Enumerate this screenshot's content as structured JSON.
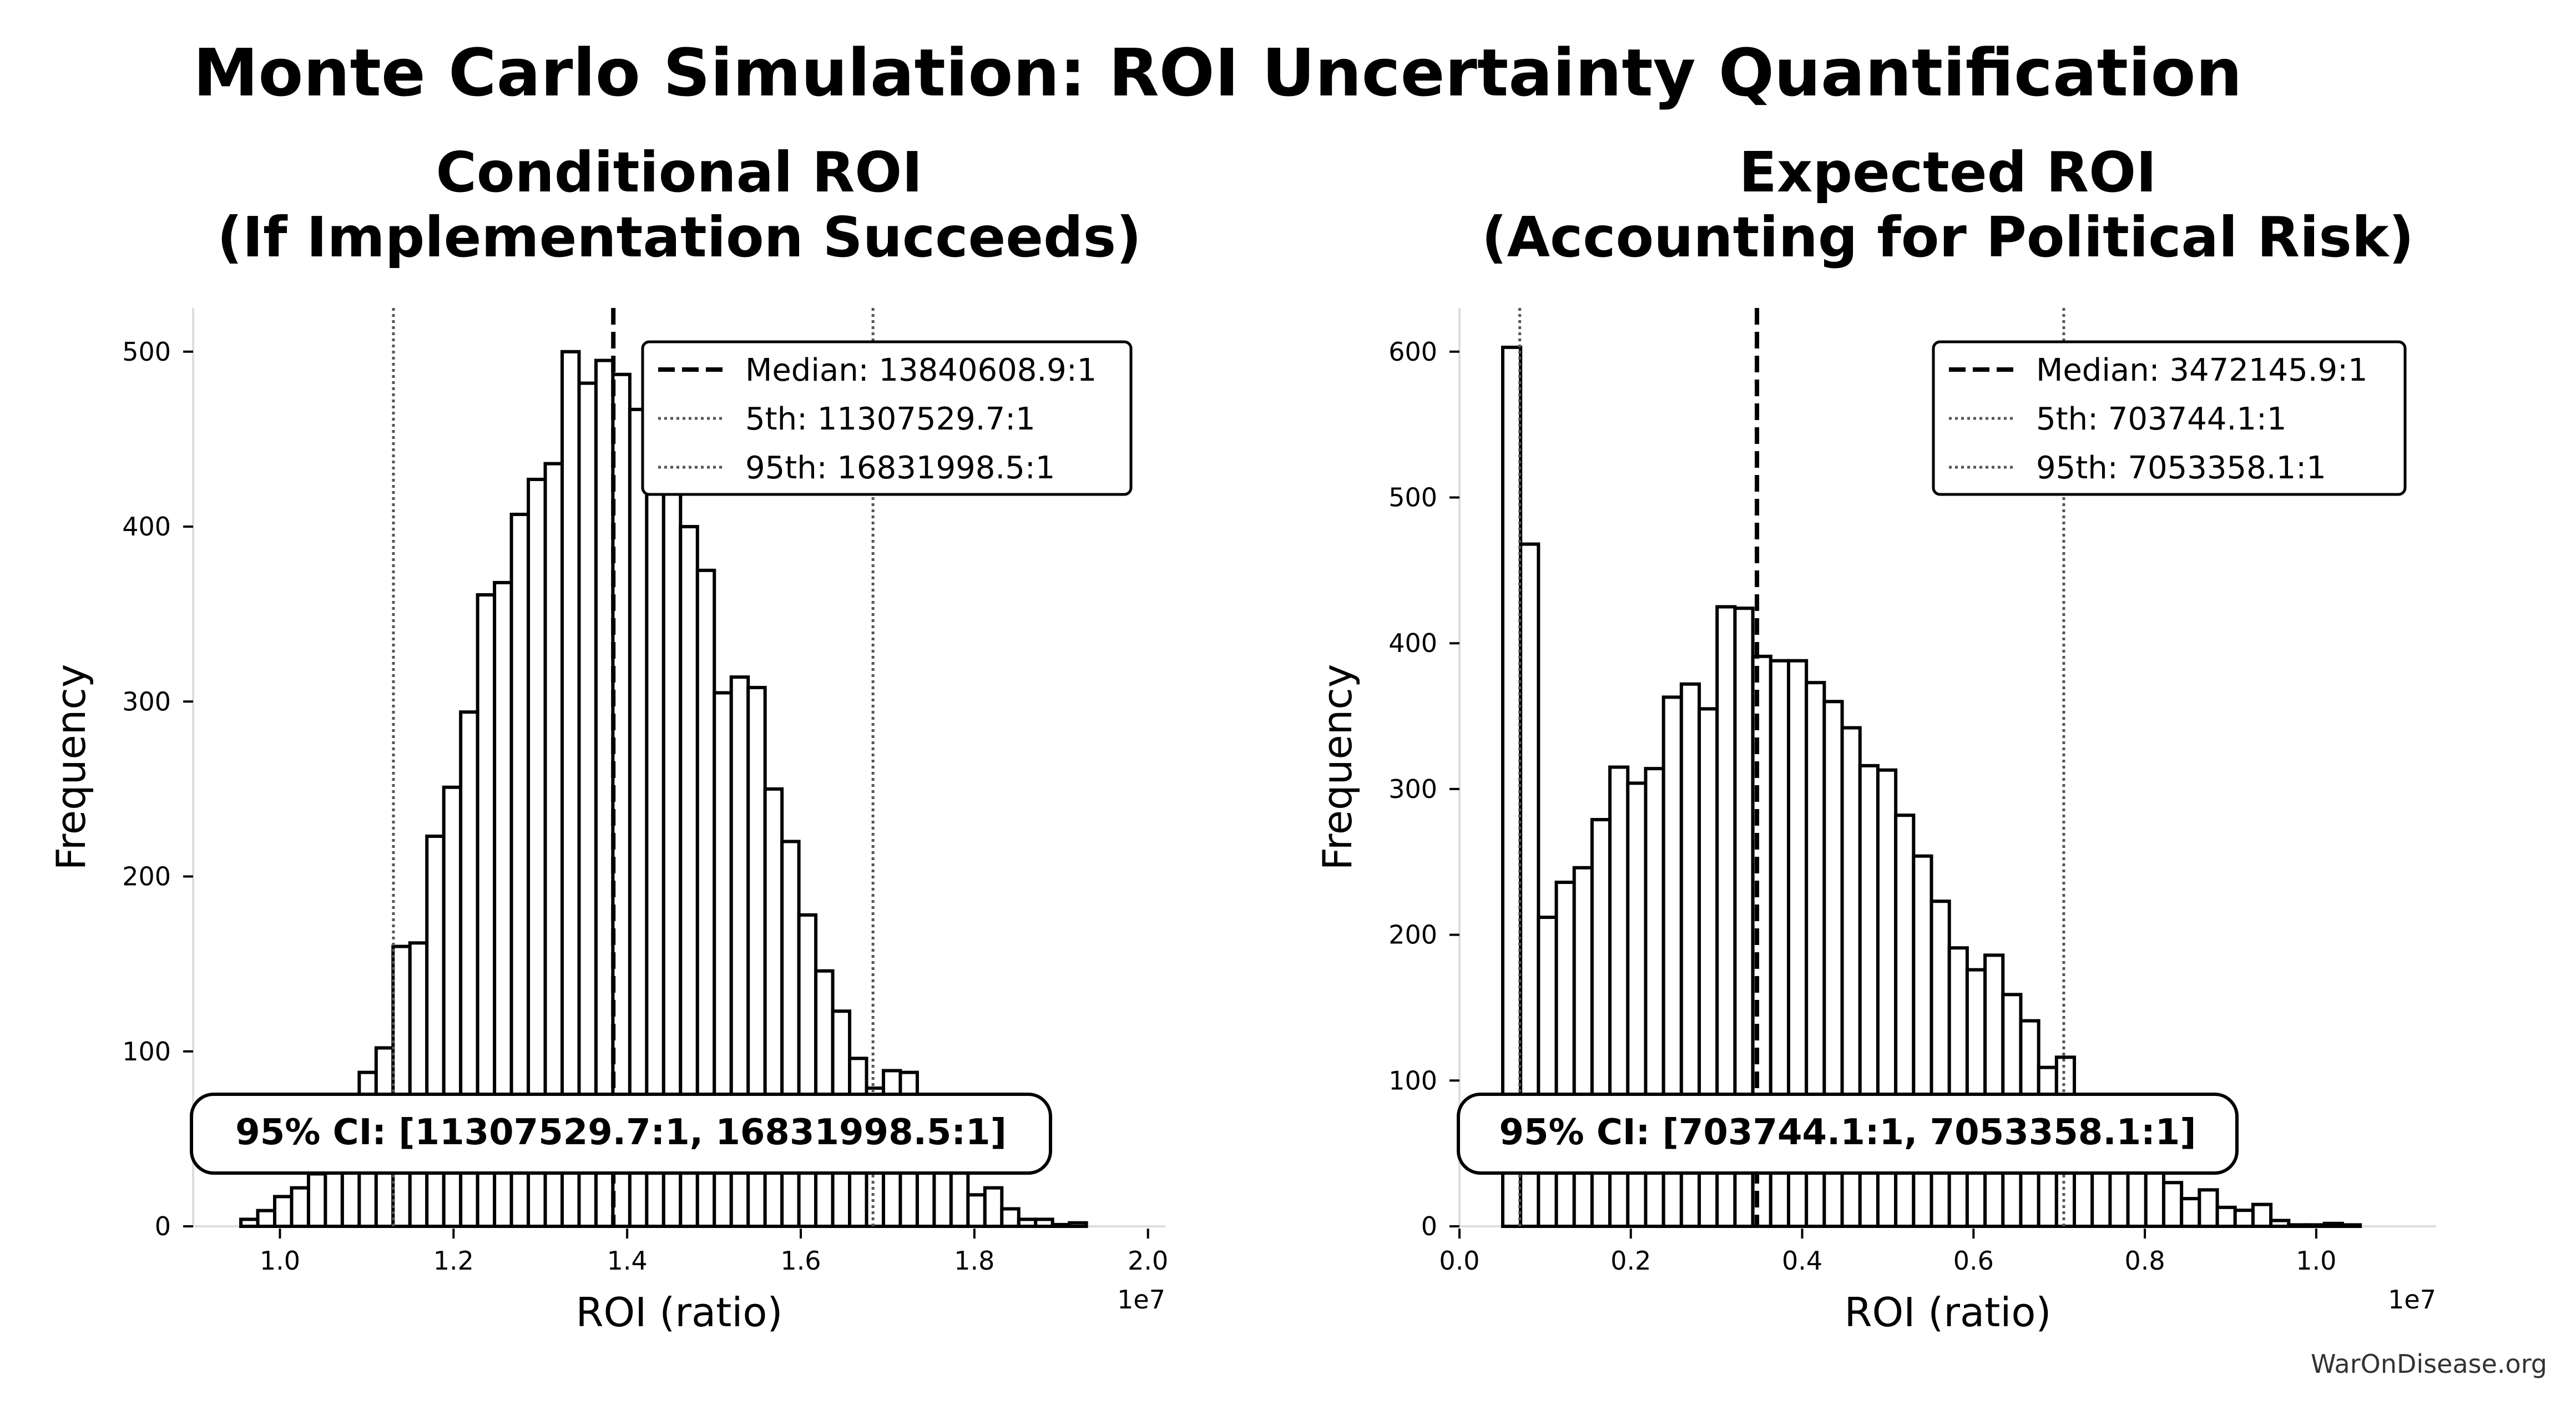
{
  "suptitle": "Monte Carlo Simulation: ROI Uncertainty Quantification",
  "watermark": "WarOnDisease.org",
  "chart_data": [
    {
      "type": "bar",
      "subtype": "histogram",
      "title": "Conditional ROI\n(If Implementation Succeeds)",
      "title_lines": [
        "Conditional ROI",
        "(If Implementation Succeeds)"
      ],
      "xlabel": "ROI (ratio)",
      "ylabel": "Frequency",
      "x_offset_label": "1e7",
      "xlim": [
        0.9,
        2.02
      ],
      "ylim": [
        0,
        525
      ],
      "xticks": [
        1.0,
        1.2,
        1.4,
        1.6,
        1.8,
        2.0
      ],
      "xtick_labels": [
        "1.0",
        "1.2",
        "1.4",
        "1.6",
        "1.8",
        "2.0"
      ],
      "yticks": [
        0,
        100,
        200,
        300,
        400,
        500
      ],
      "ytick_labels": [
        "0",
        "100",
        "200",
        "300",
        "400",
        "500"
      ],
      "bin_start": 0.955,
      "bin_width": 0.01948,
      "counts": [
        4,
        9,
        17,
        22,
        30,
        40,
        45,
        88,
        102,
        160,
        162,
        223,
        251,
        294,
        361,
        368,
        407,
        427,
        436,
        500,
        482,
        495,
        487,
        467,
        455,
        430,
        400,
        375,
        305,
        314,
        308,
        250,
        220,
        178,
        146,
        123,
        96,
        79,
        89,
        88,
        60,
        45,
        38,
        18,
        22,
        10,
        4,
        4,
        1,
        2
      ],
      "median": 1.38406089,
      "p5": 1.13075297,
      "p95": 1.68319985,
      "legend": [
        {
          "label": "Median: 13840608.9:1",
          "style": "dashed"
        },
        {
          "label": "5th: 11307529.7:1",
          "style": "dotted"
        },
        {
          "label": "95th: 16831998.5:1",
          "style": "dotted"
        }
      ],
      "legend_position": "upper-right",
      "ci_text": "95% CI: [11307529.7:1, 16831998.5:1]"
    },
    {
      "type": "bar",
      "subtype": "histogram",
      "title": "Expected ROI\n(Accounting for Political Risk)",
      "title_lines": [
        "Expected ROI",
        "(Accounting for Political Risk)"
      ],
      "xlabel": "ROI (ratio)",
      "ylabel": "Frequency",
      "x_offset_label": "1e7",
      "xlim": [
        0.0,
        1.14
      ],
      "ylim": [
        0,
        630
      ],
      "xticks": [
        0.0,
        0.2,
        0.4,
        0.6,
        0.8,
        1.0
      ],
      "xtick_labels": [
        "0.0",
        "0.2",
        "0.4",
        "0.6",
        "0.8",
        "1.0"
      ],
      "yticks": [
        0,
        100,
        200,
        300,
        400,
        500,
        600
      ],
      "ytick_labels": [
        "0",
        "100",
        "200",
        "300",
        "400",
        "500",
        "600"
      ],
      "bin_start": 0.0505,
      "bin_width": 0.02085,
      "counts": [
        603,
        468,
        212,
        236,
        246,
        279,
        315,
        304,
        314,
        363,
        372,
        355,
        425,
        424,
        391,
        388,
        388,
        373,
        360,
        342,
        316,
        313,
        282,
        254,
        223,
        191,
        176,
        186,
        159,
        141,
        109,
        116,
        80,
        70,
        62,
        52,
        44,
        30,
        19,
        25,
        13,
        11,
        15,
        4,
        1,
        1,
        2,
        1
      ],
      "median": 0.34721459,
      "p5": 0.07037441,
      "p95": 0.70533581,
      "legend": [
        {
          "label": "Median: 3472145.9:1",
          "style": "dashed"
        },
        {
          "label": "5th: 703744.1:1",
          "style": "dotted"
        },
        {
          "label": "95th: 7053358.1:1",
          "style": "dotted"
        }
      ],
      "legend_position": "upper-right",
      "ci_text": "95% CI: [703744.1:1, 7053358.1:1]"
    }
  ]
}
